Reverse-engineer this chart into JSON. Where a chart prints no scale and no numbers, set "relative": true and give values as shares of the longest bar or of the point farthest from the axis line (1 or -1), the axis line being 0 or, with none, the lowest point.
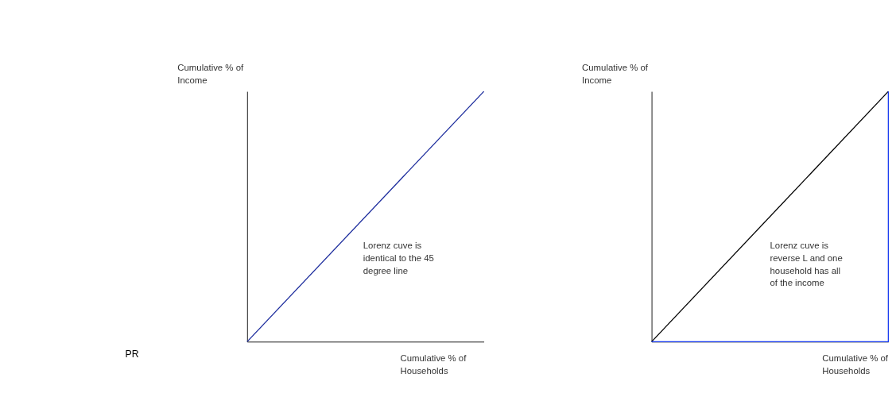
{
  "chart_data": [
    {
      "type": "line",
      "relative": true,
      "tick_labels": false,
      "xlabel": "Cumulative % of Households",
      "ylabel": "Cumulative % of Income",
      "categories": [
        null,
        null
      ],
      "series": [
        {
          "color": "#1a2a9c",
          "values": [
            0,
            1
          ]
        }
      ],
      "annotations": [
        "Lorenz cuve is identical to the 45 degree line",
        "PR"
      ]
    },
    {
      "type": "line",
      "relative": true,
      "tick_labels": false,
      "xlabel": "Cumulative % of Households",
      "ylabel": "Cumulative % of Income",
      "categories": [
        null,
        null
      ],
      "series": [
        {
          "color": "#000000",
          "values": [
            0,
            1
          ]
        },
        {
          "type": "step",
          "color": "#1a3cf0",
          "values": [
            0,
            1
          ]
        }
      ],
      "annotations": [
        "Lorenz cuve is reverse L and one household has all of the income"
      ]
    }
  ]
}
